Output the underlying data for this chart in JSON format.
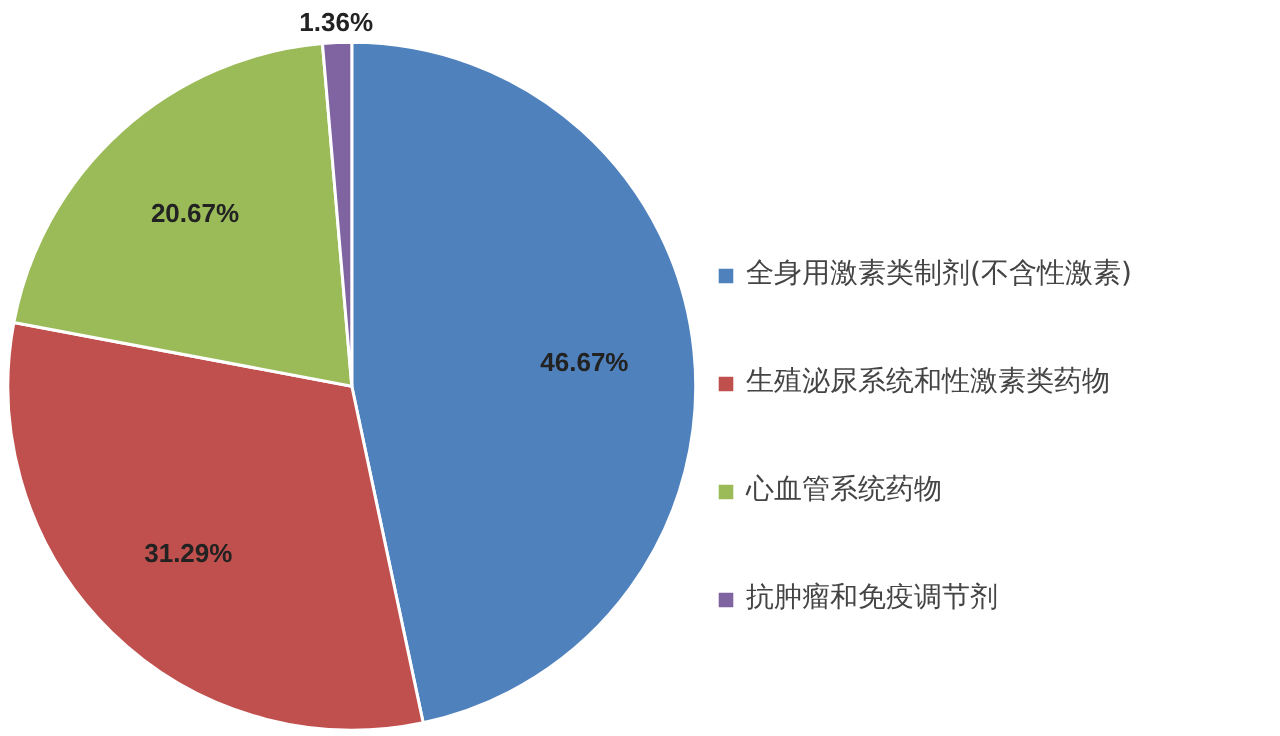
{
  "chart_data": {
    "type": "pie",
    "categories": [
      "全身用激素类制剂(不含性激素)",
      "生殖泌尿系统和性激素类药物",
      "心血管系统药物",
      "抗肿瘤和免疫调节剂"
    ],
    "values": [
      46.67,
      31.29,
      20.67,
      1.36
    ],
    "colors": [
      "#4f81bd",
      "#c0504d",
      "#9bbb59",
      "#8064a2"
    ],
    "value_labels": [
      "46.67%",
      "31.29%",
      "20.67%",
      "1.36%"
    ],
    "legend": "right"
  }
}
